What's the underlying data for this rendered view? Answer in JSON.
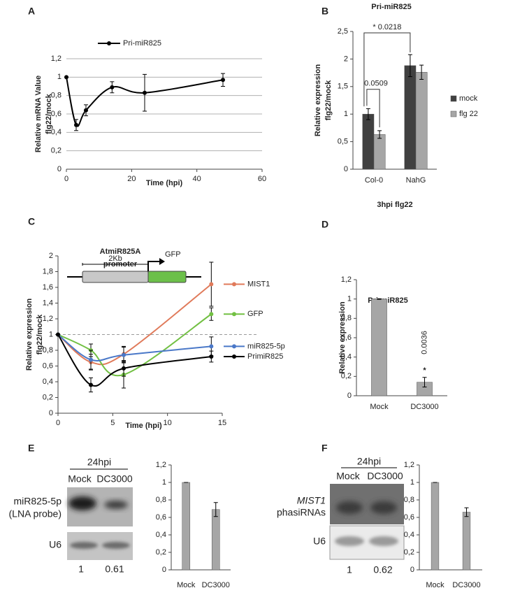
{
  "panel_labels": [
    "A",
    "B",
    "C",
    "D",
    "E",
    "F"
  ],
  "chart_data": [
    {
      "type": "line",
      "ylabel": [
        "Relative mRNA Value",
        "flg22/mock"
      ],
      "xlabel": "Time (hpi)",
      "x": [
        0,
        3,
        6,
        14,
        24,
        48
      ],
      "series": [
        {
          "name": "Pri-miR825",
          "color": "#000000",
          "values": [
            1,
            0.48,
            0.64,
            0.89,
            0.83,
            0.97
          ],
          "errors": [
            0,
            0.06,
            0.06,
            0.06,
            0.2,
            0.07
          ]
        }
      ],
      "xlim": [
        0,
        60
      ],
      "xticks": [
        0,
        20,
        40,
        60
      ],
      "ylim": [
        0,
        1.2
      ],
      "yticks": [
        0,
        {
          "value": 0.2,
          "label": "0,2"
        },
        {
          "value": 0.4,
          "label": "0,4"
        },
        {
          "value": 0.6,
          "label": "0,6"
        },
        {
          "value": 0.8,
          "label": "0,8"
        },
        1,
        {
          "value": 1.2,
          "label": "1,2"
        }
      ],
      "grid": true,
      "legend": "top"
    },
    {
      "type": "bar",
      "title": "Pri-miR825",
      "ylabel": [
        "Relative expression",
        "flg22/mock"
      ],
      "xlabel": "3hpi flg22",
      "categories": [
        "Col-0",
        "NahG"
      ],
      "series": [
        {
          "name": "mock",
          "color": "#404040",
          "values": [
            1,
            1.88
          ],
          "errors": [
            0.1,
            0.2
          ]
        },
        {
          "name": "flg 22",
          "color": "#a6a6a6",
          "values": [
            0.63,
            1.76
          ],
          "errors": [
            0.07,
            0.13
          ]
        }
      ],
      "ylim": [
        0,
        2.5
      ],
      "yticks": [
        0,
        {
          "value": 0.5,
          "label": "0,5"
        },
        1,
        {
          "value": 1.5,
          "label": "1,5"
        },
        2,
        {
          "value": 2.5,
          "label": "2,5"
        }
      ],
      "grid": false,
      "legend": "right",
      "annotations": [
        "* 0.0218",
        "0.0509"
      ]
    },
    {
      "type": "line",
      "ylabel": [
        "Relative expression",
        "flg22/mock"
      ],
      "xlabel": "Time (hpi)",
      "x": [
        0,
        3,
        6,
        14
      ],
      "series": [
        {
          "name": "MIST1",
          "color": "#e07a5a",
          "values": [
            1,
            0.65,
            0.75,
            1.64
          ],
          "errors": [
            0,
            0.1,
            0.1,
            0.28
          ]
        },
        {
          "name": "GFP",
          "color": "#72c043",
          "values": [
            1,
            0.8,
            0.49,
            1.26
          ],
          "errors": [
            0,
            0.08,
            0.17,
            0.08
          ]
        },
        {
          "name": "miR825-5p",
          "color": "#4a78c8",
          "values": [
            1,
            0.68,
            0.74,
            0.85
          ],
          "errors": [
            0,
            0.12,
            0.1,
            0.12
          ]
        },
        {
          "name": "PrimiR825",
          "color": "#000000",
          "values": [
            1,
            0.36,
            0.57,
            0.72
          ],
          "errors": [
            0,
            0.09,
            0.1,
            0.07
          ]
        }
      ],
      "xlim": [
        0,
        15
      ],
      "xticks": [
        0,
        5,
        10,
        15
      ],
      "ylim": [
        0,
        2
      ],
      "yticks": [
        0,
        {
          "value": 0.2,
          "label": "0,2"
        },
        {
          "value": 0.4,
          "label": "0,4"
        },
        {
          "value": 0.6,
          "label": "0,6"
        },
        {
          "value": 0.8,
          "label": "0,8"
        },
        1,
        {
          "value": 1.2,
          "label": "1,2"
        },
        {
          "value": 1.4,
          "label": "1,4"
        },
        {
          "value": 1.6,
          "label": "1,6"
        },
        {
          "value": 1.8,
          "label": "1,8"
        },
        2
      ],
      "grid": false,
      "legend": "right",
      "reference_line": 1,
      "inset_labels": [
        "AtmiR825A",
        "promoter",
        "2Kb",
        "GFP"
      ]
    },
    {
      "type": "bar",
      "title": "Pri-miR825",
      "ylabel": [
        "Relative expression"
      ],
      "categories": [
        "Mock",
        "DC3000"
      ],
      "values": [
        1,
        0.14
      ],
      "errors": [
        0.003,
        0.05
      ],
      "color": "#a6a6a6",
      "ylim": [
        0,
        1.2
      ],
      "yticks": [
        0,
        {
          "value": 0.2,
          "label": "0,2"
        },
        {
          "value": 0.4,
          "label": "0,4"
        },
        {
          "value": 0.6,
          "label": "0,6"
        },
        {
          "value": 0.8,
          "label": "0,8"
        },
        1,
        {
          "value": 1.2,
          "label": "1,2"
        }
      ],
      "grid": false,
      "annotations": [
        "*",
        "0.0036"
      ]
    },
    {
      "type": "bar",
      "categories": [
        "Mock",
        "DC3000"
      ],
      "values": [
        1,
        0.69
      ],
      "errors": [
        0,
        0.08
      ],
      "color": "#a6a6a6",
      "ylim": [
        0,
        1.2
      ],
      "yticks": [
        0,
        {
          "value": 0.2,
          "label": "0,2"
        },
        {
          "value": 0.4,
          "label": "0,4"
        },
        {
          "value": 0.6,
          "label": "0,6"
        },
        {
          "value": 0.8,
          "label": "0,8"
        },
        1,
        {
          "value": 1.2,
          "label": "1,2"
        }
      ],
      "grid": false
    },
    {
      "type": "bar",
      "categories": [
        "Mock",
        "DC3000"
      ],
      "values": [
        1,
        0.66
      ],
      "errors": [
        0,
        0.05
      ],
      "color": "#a6a6a6",
      "ylim": [
        0,
        1.2
      ],
      "yticks": [
        0,
        {
          "value": 0.2,
          "label": "0,2"
        },
        {
          "value": 0.4,
          "label": "0,4"
        },
        {
          "value": 0.6,
          "label": "0,6"
        },
        {
          "value": 0.8,
          "label": "0,8"
        },
        1,
        {
          "value": 1.2,
          "label": "1,2"
        }
      ],
      "grid": false
    }
  ],
  "blots": [
    {
      "header": "24hpi",
      "lanes": [
        "Mock",
        "DC3000"
      ],
      "probe": [
        "miR825-5p",
        "(LNA probe)"
      ],
      "loading": "U6",
      "quantities": [
        1,
        0.61
      ]
    },
    {
      "header": "24hpi",
      "lanes": [
        "Mock",
        "DC3000"
      ],
      "probe": [
        "MIST1",
        "phasiRNAs"
      ],
      "loading": "U6",
      "quantities": [
        1,
        0.62
      ]
    }
  ]
}
